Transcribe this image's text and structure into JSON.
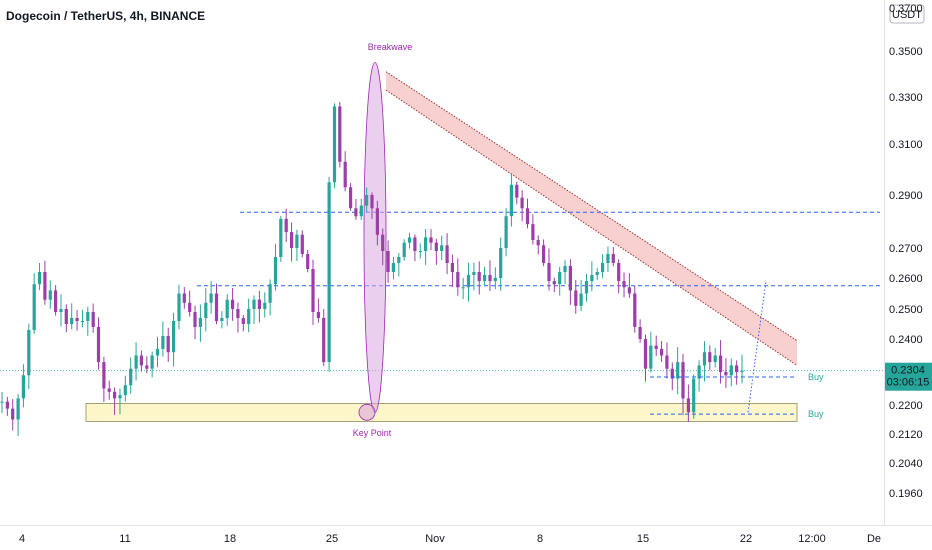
{
  "colors": {
    "up": "#26a69a",
    "down": "#9c3ea8",
    "level": "#2962ff",
    "channel_fill": "#f8c8c8",
    "channel_edge": "#a03030",
    "zone_fill": "#fdf6c8",
    "zone_edge": "#8c8c60",
    "ellipse": "#9c27b0",
    "price_tag": "#26a69a"
  },
  "header": {
    "title": "Dogecoin / TetherUS, 4h, BINANCE",
    "currency_button": "USDT"
  },
  "chart_data": {
    "type": "candlestick",
    "title": "Dogecoin / TetherUS, 4h, BINANCE",
    "x_ticks": [
      "4",
      "11",
      "18",
      "25",
      "Nov",
      "8",
      "15",
      "22",
      "12:00",
      "De"
    ],
    "y_ticks": [
      "0.3500",
      "0.3300",
      "0.3100",
      "0.2900",
      "0.2700",
      "0.2600",
      "0.2500",
      "0.2400",
      "0.2200",
      "0.2120",
      "0.2040",
      "0.1960"
    ],
    "y_top_partial": "0.3700",
    "last_price": "0.2304",
    "countdown": "03:06:15",
    "levels": [
      0.2835,
      0.2575
    ],
    "buy_levels": [
      {
        "label": "Buy",
        "price": 0.2285
      },
      {
        "label": "Buy",
        "price": 0.2175
      }
    ],
    "annotations": [
      {
        "text": "Breakwave",
        "price": 0.3505
      },
      {
        "text": "Key Point",
        "price": 0.2115
      }
    ],
    "zone": {
      "low": 0.2155,
      "high": 0.2205
    },
    "channel": {
      "upper_start": 0.341,
      "upper_end": 0.2395,
      "lower_start": 0.333,
      "lower_end": 0.232
    },
    "series": [
      {
        "name": "Dogecoin / TetherUS",
        "close_path": [
          0.221,
          0.219,
          0.216,
          0.222,
          0.229,
          0.243,
          0.258,
          0.262,
          0.253,
          0.256,
          0.249,
          0.25,
          0.245,
          0.247,
          0.246,
          0.246,
          0.249,
          0.244,
          0.233,
          0.225,
          0.224,
          0.222,
          0.223,
          0.226,
          0.231,
          0.235,
          0.232,
          0.231,
          0.235,
          0.237,
          0.241,
          0.236,
          0.246,
          0.255,
          0.252,
          0.249,
          0.244,
          0.247,
          0.252,
          0.255,
          0.246,
          0.247,
          0.253,
          0.25,
          0.247,
          0.245,
          0.25,
          0.253,
          0.25,
          0.252,
          0.258,
          0.267,
          0.281,
          0.276,
          0.27,
          0.275,
          0.268,
          0.263,
          0.249,
          0.247,
          0.233,
          0.295,
          0.326,
          0.303,
          0.293,
          0.285,
          0.282,
          0.286,
          0.29,
          0.285,
          0.275,
          0.269,
          0.262,
          0.265,
          0.267,
          0.272,
          0.274,
          0.269,
          0.269,
          0.274,
          0.272,
          0.269,
          0.271,
          0.265,
          0.262,
          0.257,
          0.257,
          0.261,
          0.262,
          0.259,
          0.261,
          0.259,
          0.26,
          0.27,
          0.282,
          0.294,
          0.289,
          0.285,
          0.279,
          0.273,
          0.271,
          0.265,
          0.259,
          0.258,
          0.262,
          0.264,
          0.256,
          0.251,
          0.255,
          0.259,
          0.261,
          0.262,
          0.265,
          0.268,
          0.265,
          0.259,
          0.257,
          0.255,
          0.244,
          0.24,
          0.231,
          0.238,
          0.237,
          0.235,
          0.231,
          0.228,
          0.233,
          0.222,
          0.218,
          0.228,
          0.232,
          0.236,
          0.233,
          0.235,
          0.23,
          0.229,
          0.232,
          0.23,
          0.2304
        ]
      }
    ],
    "grid": false,
    "legend": "none"
  }
}
